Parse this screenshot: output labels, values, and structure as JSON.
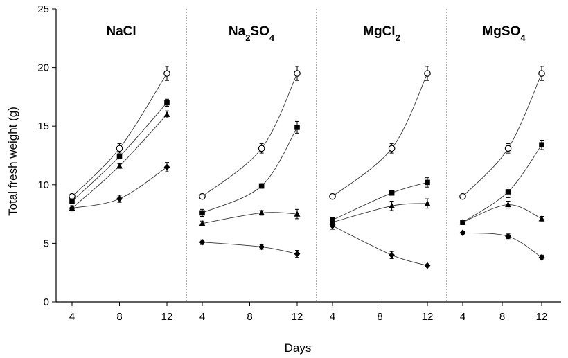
{
  "chart_data": {
    "type": "line",
    "xlabel": "Days",
    "ylabel": "Total fresh weight (g)",
    "ylim": [
      0,
      25
    ],
    "yticks": [
      0,
      5,
      10,
      15,
      20,
      25
    ],
    "xticks": [
      4,
      8,
      12
    ],
    "grid": false,
    "legend": "none",
    "panels": [
      {
        "title": "NaCl",
        "title_parts": [
          {
            "text": "NaCl",
            "sub": false
          }
        ],
        "series": [
          {
            "marker": "open-circle",
            "x": [
              4,
              8,
              12
            ],
            "values": [
              9.0,
              13.1,
              19.5
            ],
            "errors": [
              0.2,
              0.4,
              0.6
            ]
          },
          {
            "marker": "filled-square",
            "x": [
              4,
              8,
              12
            ],
            "values": [
              8.6,
              12.4,
              17.0
            ],
            "errors": [
              0.2,
              0.2,
              0.3
            ]
          },
          {
            "marker": "filled-triangle",
            "x": [
              4,
              8,
              12
            ],
            "values": [
              8.0,
              11.6,
              16.0
            ],
            "errors": [
              0.2,
              0.2,
              0.3
            ]
          },
          {
            "marker": "filled-diamond",
            "x": [
              4,
              8,
              12
            ],
            "values": [
              8.0,
              8.8,
              11.5
            ],
            "errors": [
              0.2,
              0.3,
              0.4
            ]
          }
        ]
      },
      {
        "title": "Na2SO4",
        "title_parts": [
          {
            "text": "Na",
            "sub": false
          },
          {
            "text": "2",
            "sub": true
          },
          {
            "text": "SO",
            "sub": false
          },
          {
            "text": "4",
            "sub": true
          }
        ],
        "series": [
          {
            "marker": "open-circle",
            "x": [
              4,
              9,
              12
            ],
            "values": [
              9.0,
              13.1,
              19.5
            ],
            "errors": [
              0.2,
              0.4,
              0.6
            ]
          },
          {
            "marker": "filled-square",
            "x": [
              4,
              9,
              12
            ],
            "values": [
              7.6,
              9.9,
              14.9
            ],
            "errors": [
              0.3,
              0.2,
              0.5
            ]
          },
          {
            "marker": "filled-triangle",
            "x": [
              4,
              9,
              12
            ],
            "values": [
              6.7,
              7.6,
              7.5
            ],
            "errors": [
              0.2,
              0.2,
              0.4
            ]
          },
          {
            "marker": "filled-diamond",
            "x": [
              4,
              9,
              12
            ],
            "values": [
              5.1,
              4.7,
              4.1
            ],
            "errors": [
              0.2,
              0.2,
              0.3
            ]
          }
        ]
      },
      {
        "title": "MgCl2",
        "title_parts": [
          {
            "text": "MgCl",
            "sub": false
          },
          {
            "text": "2",
            "sub": true
          }
        ],
        "series": [
          {
            "marker": "open-circle",
            "x": [
              4,
              9,
              12
            ],
            "values": [
              9.0,
              13.1,
              19.5
            ],
            "errors": [
              0.2,
              0.4,
              0.6
            ]
          },
          {
            "marker": "filled-square",
            "x": [
              4,
              9,
              12
            ],
            "values": [
              7.0,
              9.3,
              10.2
            ],
            "errors": [
              0.2,
              0.2,
              0.4
            ]
          },
          {
            "marker": "filled-triangle",
            "x": [
              4,
              9,
              12
            ],
            "values": [
              6.8,
              8.2,
              8.4
            ],
            "errors": [
              0.2,
              0.4,
              0.4
            ]
          },
          {
            "marker": "filled-diamond",
            "x": [
              4,
              9,
              12
            ],
            "values": [
              6.5,
              4.0,
              3.1
            ],
            "errors": [
              0.3,
              0.3,
              0.1
            ]
          }
        ]
      },
      {
        "title": "MgSO4",
        "title_parts": [
          {
            "text": "MgSO",
            "sub": false
          },
          {
            "text": "4",
            "sub": true
          }
        ],
        "series": [
          {
            "marker": "open-circle",
            "x": [
              4,
              8.6,
              12
            ],
            "values": [
              9.0,
              13.1,
              19.5
            ],
            "errors": [
              0.2,
              0.4,
              0.6
            ]
          },
          {
            "marker": "filled-square",
            "x": [
              4,
              8.6,
              12
            ],
            "values": [
              6.8,
              9.4,
              13.4
            ],
            "errors": [
              0.2,
              0.5,
              0.4
            ]
          },
          {
            "marker": "filled-triangle",
            "x": [
              4,
              8.6,
              12
            ],
            "values": [
              6.8,
              8.3,
              7.1
            ],
            "errors": [
              0.2,
              0.3,
              0.2
            ]
          },
          {
            "marker": "filled-diamond",
            "x": [
              4,
              8.6,
              12
            ],
            "values": [
              5.9,
              5.6,
              3.8
            ],
            "errors": [
              0.1,
              0.2,
              0.2
            ]
          }
        ]
      }
    ]
  }
}
